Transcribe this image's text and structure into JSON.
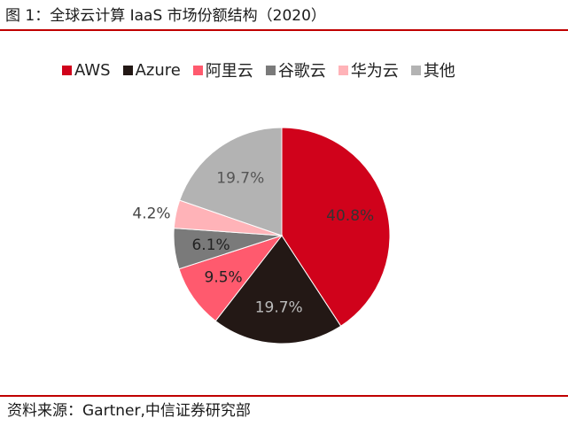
{
  "header": {
    "title": "图 1：全球云计算 IaaS 市场份额结构（2020）"
  },
  "footer": {
    "source": "资料来源：Gartner,中信证券研究部"
  },
  "colors": {
    "rule": "#c00000",
    "label_light": "#555555",
    "label_dark": "#333333"
  },
  "chart_data": {
    "type": "pie",
    "title": "图 1：全球云计算 IaaS 市场份额结构（2020）",
    "legend_position": "top",
    "unit": "%",
    "series": [
      {
        "name": "AWS",
        "value": 40.8,
        "label": "40.8%",
        "color": "#d0021b",
        "label_color": "#333333"
      },
      {
        "name": "Azure",
        "value": 19.7,
        "label": "19.7%",
        "color": "#231815",
        "label_color": "#bbbbbb"
      },
      {
        "name": "阿里云",
        "value": 9.5,
        "label": "9.5%",
        "color": "#ff5a6e",
        "label_color": "#222222"
      },
      {
        "name": "谷歌云",
        "value": 6.1,
        "label": "6.1%",
        "color": "#7a7a7a",
        "label_color": "#222222"
      },
      {
        "name": "华为云",
        "value": 4.2,
        "label": "4.2%",
        "color": "#ffb3b8",
        "label_color": "#444444",
        "label_outside": true
      },
      {
        "name": "其他",
        "value": 19.7,
        "label": "19.7%",
        "color": "#b3b3b3",
        "label_color": "#555555"
      }
    ]
  }
}
